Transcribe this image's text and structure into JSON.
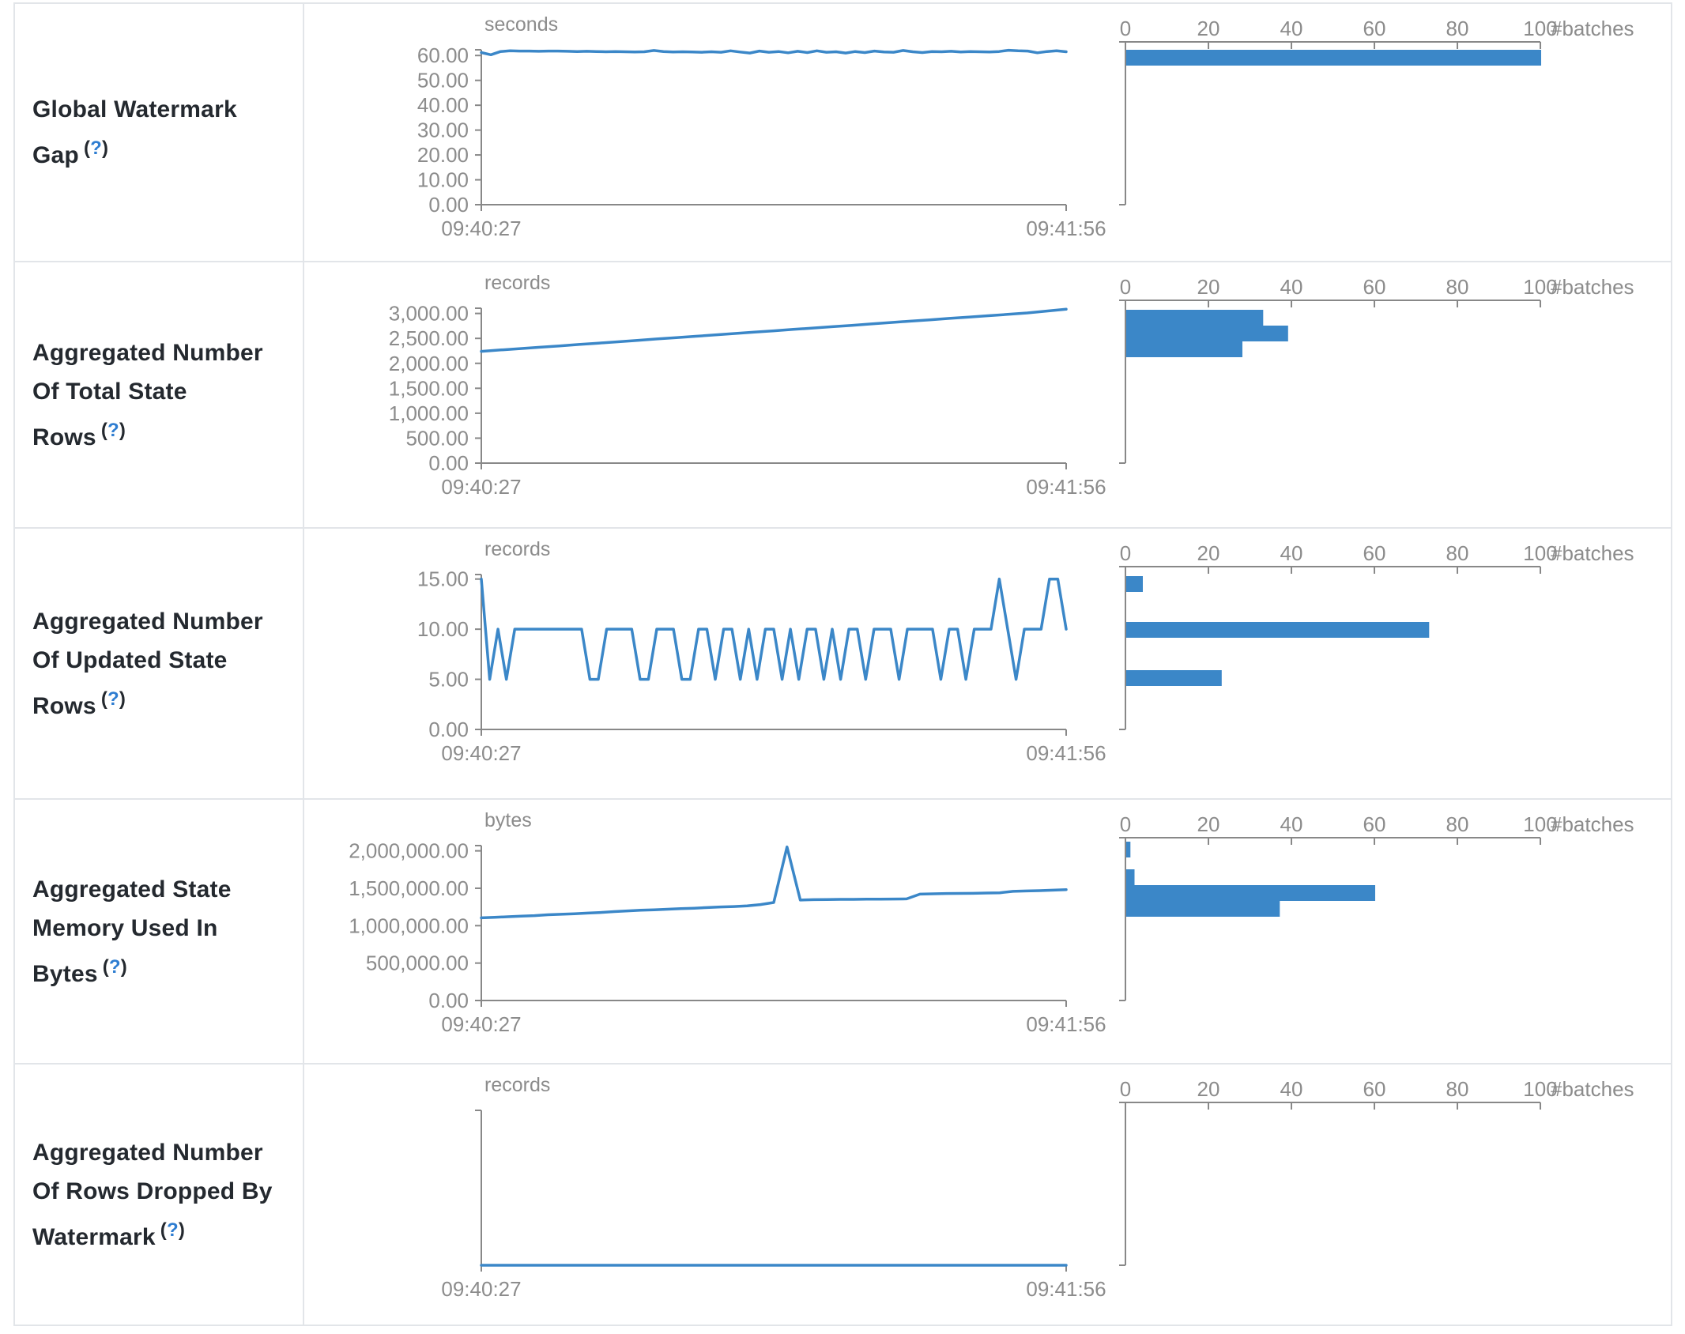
{
  "colors": {
    "accent": "#3b87c8",
    "axis": "#888888",
    "tick_text": "#8c8c8c",
    "label_text": "#24292f",
    "help_link": "#2e7dd1",
    "border": "#e2e5e9"
  },
  "help": {
    "open": "(",
    "q": "?",
    "close": ")"
  },
  "rows": [
    {
      "label": "Global Watermark Gap"
    },
    {
      "label": "Aggregated Number Of Total State Rows"
    },
    {
      "label": "Aggregated Number Of Updated State Rows"
    },
    {
      "label": "Aggregated State Memory Used In Bytes"
    },
    {
      "label": "Aggregated Number Of Rows Dropped By Watermark"
    }
  ],
  "chart_data": [
    {
      "name": "Global Watermark Gap",
      "timeline": {
        "type": "line",
        "unit": "seconds",
        "x_start": "09:40:27",
        "x_end": "09:41:56",
        "y_axis_max": 62.3,
        "y_ticks": [
          {
            "label": "60.00",
            "value": 60
          },
          {
            "label": "50.00",
            "value": 50
          },
          {
            "label": "40.00",
            "value": 40
          },
          {
            "label": "30.00",
            "value": 30
          },
          {
            "label": "20.00",
            "value": 20
          },
          {
            "label": "10.00",
            "value": 10
          },
          {
            "label": "0.00",
            "value": 0
          }
        ],
        "values": [
          61.2,
          60.3,
          61.6,
          61.9,
          61.8,
          61.8,
          61.7,
          61.8,
          61.8,
          61.7,
          61.6,
          61.7,
          61.6,
          61.5,
          61.6,
          61.5,
          61.4,
          61.5,
          62.0,
          61.6,
          61.4,
          61.5,
          61.4,
          61.3,
          61.5,
          61.3,
          61.9,
          61.4,
          61.0,
          61.8,
          61.3,
          61.6,
          61.1,
          61.7,
          61.2,
          61.9,
          61.3,
          61.5,
          61.0,
          61.6,
          61.2,
          61.8,
          61.4,
          61.3,
          62.0,
          61.5,
          61.2,
          61.6,
          61.5,
          61.7,
          61.4,
          61.6,
          61.5,
          61.4,
          61.6,
          62.1,
          61.9,
          61.8,
          61.1,
          61.6,
          61.9,
          61.5
        ]
      },
      "histogram": {
        "type": "bar",
        "x_label": "#batches",
        "x_ticks": [
          "0",
          "20",
          "40",
          "60",
          "80",
          "100"
        ],
        "x_max": 100,
        "bars": [
          {
            "y": 58,
            "batches": 100
          }
        ]
      }
    },
    {
      "name": "Aggregated Number Of Total State Rows",
      "timeline": {
        "type": "line",
        "unit": "records",
        "x_start": "09:40:27",
        "x_end": "09:41:56",
        "y_axis_max": 3105,
        "y_ticks": [
          {
            "label": "3,000.00",
            "value": 3000
          },
          {
            "label": "2,500.00",
            "value": 2500
          },
          {
            "label": "2,000.00",
            "value": 2000
          },
          {
            "label": "1,500.00",
            "value": 1500
          },
          {
            "label": "1,000.00",
            "value": 1000
          },
          {
            "label": "500.00",
            "value": 500
          },
          {
            "label": "0.00",
            "value": 0
          }
        ],
        "values": [
          2240,
          2268,
          2295,
          2322,
          2350,
          2378,
          2405,
          2432,
          2460,
          2488,
          2515,
          2542,
          2570,
          2598,
          2625,
          2652,
          2680,
          2708,
          2735,
          2762,
          2790,
          2818,
          2845,
          2872,
          2900,
          2928,
          2955,
          2982,
          3010,
          3048,
          3085
        ]
      },
      "histogram": {
        "type": "bar",
        "x_label": "#batches",
        "x_ticks": [
          "0",
          "20",
          "40",
          "60",
          "80",
          "100"
        ],
        "x_max": 100,
        "bars": [
          {
            "y": 60,
            "batches": 33
          },
          {
            "y": 80,
            "batches": 39
          },
          {
            "y": 100,
            "batches": 28
          }
        ]
      }
    },
    {
      "name": "Aggregated Number Of Updated State Rows",
      "timeline": {
        "type": "line",
        "unit": "records",
        "x_start": "09:40:27",
        "x_end": "09:41:56",
        "y_axis_max": 15.45,
        "y_ticks": [
          {
            "label": "15.00",
            "value": 15
          },
          {
            "label": "10.00",
            "value": 10
          },
          {
            "label": "5.00",
            "value": 5
          },
          {
            "label": "0.00",
            "value": 0
          }
        ],
        "values": [
          15,
          5,
          10,
          5,
          10,
          10,
          10,
          10,
          10,
          10,
          10,
          10,
          10,
          5,
          5,
          10,
          10,
          10,
          10,
          5,
          5,
          10,
          10,
          10,
          5,
          5,
          10,
          10,
          5,
          10,
          10,
          5,
          10,
          5,
          10,
          10,
          5,
          10,
          5,
          10,
          10,
          5,
          10,
          5,
          10,
          10,
          5,
          10,
          10,
          10,
          5,
          10,
          10,
          10,
          10,
          5,
          10,
          10,
          5,
          10,
          10,
          10,
          15,
          10,
          5,
          10,
          10,
          10,
          15,
          15,
          10
        ]
      },
      "histogram": {
        "type": "bar",
        "x_label": "#batches",
        "x_ticks": [
          "0",
          "20",
          "40",
          "60",
          "80",
          "100"
        ],
        "x_max": 100,
        "bars": [
          {
            "y": 60,
            "batches": 4
          },
          {
            "y": 118,
            "batches": 73
          },
          {
            "y": 179,
            "batches": 23
          }
        ]
      }
    },
    {
      "name": "Aggregated State Memory Used In Bytes",
      "timeline": {
        "type": "line",
        "unit": "bytes",
        "x_start": "09:40:27",
        "x_end": "09:41:56",
        "y_axis_max": 2070000,
        "y_ticks": [
          {
            "label": "2,000,000.00",
            "value": 2000000
          },
          {
            "label": "1,500,000.00",
            "value": 1500000
          },
          {
            "label": "1,000,000.00",
            "value": 1000000
          },
          {
            "label": "500,000.00",
            "value": 500000
          },
          {
            "label": "0.00",
            "value": 0
          }
        ],
        "values": [
          1105000,
          1112000,
          1120000,
          1128000,
          1134000,
          1146000,
          1152000,
          1160000,
          1168000,
          1176000,
          1188000,
          1198000,
          1206000,
          1212000,
          1220000,
          1228000,
          1234000,
          1242000,
          1250000,
          1256000,
          1264000,
          1282000,
          1310000,
          2052000,
          1342000,
          1348000,
          1350000,
          1352000,
          1352000,
          1354000,
          1355000,
          1356000,
          1358000,
          1422000,
          1426000,
          1430000,
          1431000,
          1432000,
          1436000,
          1440000,
          1458000,
          1464000,
          1468000,
          1474000,
          1482000
        ]
      },
      "histogram": {
        "type": "bar",
        "x_label": "#batches",
        "x_ticks": [
          "0",
          "20",
          "40",
          "60",
          "80",
          "100"
        ],
        "x_max": 100,
        "bars": [
          {
            "y": 53,
            "batches": 1
          },
          {
            "y": 88,
            "batches": 2
          },
          {
            "y": 108,
            "batches": 60
          },
          {
            "y": 128,
            "batches": 37
          }
        ]
      }
    },
    {
      "name": "Aggregated Number Of Rows Dropped By Watermark",
      "timeline": {
        "type": "line",
        "unit": "records",
        "x_start": "09:40:27",
        "x_end": "09:41:56",
        "y_axis_max": 1,
        "y_ticks": [],
        "values": [
          0,
          0,
          0,
          0,
          0,
          0,
          0,
          0,
          0,
          0
        ]
      },
      "histogram": {
        "type": "bar",
        "x_label": "#batches",
        "x_ticks": [
          "0",
          "20",
          "40",
          "60",
          "80",
          "100"
        ],
        "x_max": 100,
        "bars": []
      }
    }
  ]
}
